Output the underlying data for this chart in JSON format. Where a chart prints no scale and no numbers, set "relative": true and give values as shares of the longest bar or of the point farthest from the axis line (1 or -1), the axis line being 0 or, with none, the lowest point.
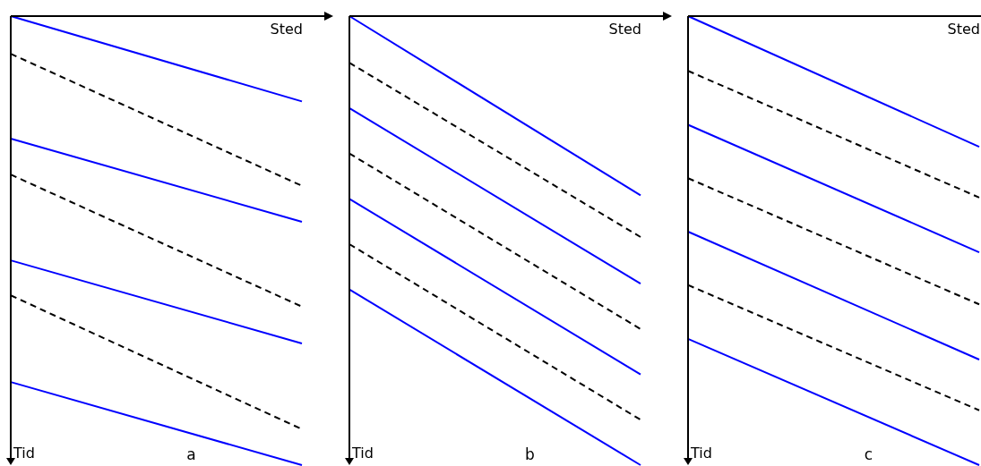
{
  "chart_data": [
    {
      "type": "line",
      "title": "a",
      "xlabel": "Sted",
      "ylabel": "Tid",
      "relative": true,
      "marker": "none",
      "categories": [
        null,
        null
      ],
      "series": [
        {
          "color": "#0000ff",
          "line_style": "solid",
          "values": [
            0,
            -0.19
          ]
        },
        {
          "color": "#000000",
          "line_style": "dashed",
          "values": [
            -0.084,
            -0.378
          ]
        },
        {
          "color": "#0000ff",
          "line_style": "solid",
          "values": [
            -0.273,
            -0.458
          ]
        },
        {
          "color": "#000000",
          "line_style": "dashed",
          "values": [
            -0.353,
            -0.647
          ]
        },
        {
          "color": "#0000ff",
          "line_style": "solid",
          "values": [
            -0.544,
            -0.729
          ]
        },
        {
          "color": "#000000",
          "line_style": "dashed",
          "values": [
            -0.622,
            -0.92
          ]
        },
        {
          "color": "#0000ff",
          "line_style": "solid",
          "values": [
            -0.815,
            -1
          ]
        }
      ]
    },
    {
      "type": "line",
      "title": "b",
      "xlabel": "Sted",
      "ylabel": "Tid",
      "relative": true,
      "marker": "none",
      "categories": [
        null,
        null
      ],
      "series": [
        {
          "color": "#0000ff",
          "line_style": "solid",
          "values": [
            0,
            -0.399
          ]
        },
        {
          "color": "#000000",
          "line_style": "dashed",
          "values": [
            -0.104,
            -0.492
          ]
        },
        {
          "color": "#0000ff",
          "line_style": "solid",
          "values": [
            -0.205,
            -0.596
          ]
        },
        {
          "color": "#000000",
          "line_style": "dashed",
          "values": [
            -0.306,
            -0.697
          ]
        },
        {
          "color": "#0000ff",
          "line_style": "solid",
          "values": [
            -0.407,
            -0.798
          ]
        },
        {
          "color": "#000000",
          "line_style": "dashed",
          "values": [
            -0.508,
            -0.899
          ]
        },
        {
          "color": "#0000ff",
          "line_style": "solid",
          "values": [
            -0.609,
            -1
          ]
        }
      ]
    },
    {
      "type": "line",
      "title": "c",
      "xlabel": "Sted",
      "ylabel": "Tid",
      "relative": true,
      "marker": "none",
      "categories": [
        null,
        null
      ],
      "series": [
        {
          "color": "#0000ff",
          "line_style": "solid",
          "values": [
            0,
            -0.291
          ]
        },
        {
          "color": "#000000",
          "line_style": "dashed",
          "values": [
            -0.122,
            -0.404
          ]
        },
        {
          "color": "#0000ff",
          "line_style": "solid",
          "values": [
            -0.242,
            -0.526
          ]
        },
        {
          "color": "#000000",
          "line_style": "dashed",
          "values": [
            -0.361,
            -0.642
          ]
        },
        {
          "color": "#0000ff",
          "line_style": "solid",
          "values": [
            -0.48,
            -0.765
          ]
        },
        {
          "color": "#000000",
          "line_style": "dashed",
          "values": [
            -0.599,
            -0.878
          ]
        },
        {
          "color": "#0000ff",
          "line_style": "solid",
          "values": [
            -0.719,
            -1
          ]
        }
      ]
    }
  ]
}
